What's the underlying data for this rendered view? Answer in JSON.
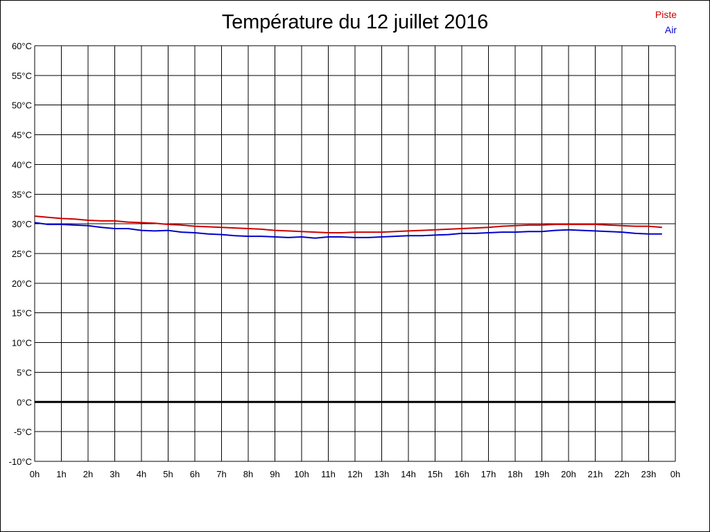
{
  "chart_data": {
    "type": "line",
    "title": "Température du 12 juillet 2016",
    "xlabel": "",
    "ylabel": "",
    "ylim": [
      -10,
      60
    ],
    "y_ticks": [
      {
        "value": 60,
        "label": "60°C"
      },
      {
        "value": 55,
        "label": "55°C"
      },
      {
        "value": 50,
        "label": "50°C"
      },
      {
        "value": 45,
        "label": "45°C"
      },
      {
        "value": 40,
        "label": "40°C"
      },
      {
        "value": 35,
        "label": "35°C"
      },
      {
        "value": 30,
        "label": "30°C"
      },
      {
        "value": 25,
        "label": "25°C"
      },
      {
        "value": 20,
        "label": "20°C"
      },
      {
        "value": 15,
        "label": "15°C"
      },
      {
        "value": 10,
        "label": "10°C"
      },
      {
        "value": 5,
        "label": "5°C"
      },
      {
        "value": 0,
        "label": "0°C"
      },
      {
        "value": -5,
        "label": "-5°C"
      },
      {
        "value": -10,
        "label": "-10°C"
      }
    ],
    "x_tick_labels": [
      "0h",
      "1h",
      "2h",
      "3h",
      "4h",
      "5h",
      "6h",
      "7h",
      "8h",
      "9h",
      "10h",
      "11h",
      "12h",
      "13h",
      "14h",
      "15h",
      "16h",
      "17h",
      "18h",
      "19h",
      "20h",
      "21h",
      "22h",
      "23h",
      "0h"
    ],
    "xlim_hours": [
      0,
      24
    ],
    "grid": true,
    "zero_line": true,
    "legend_position": "top-right",
    "series": [
      {
        "name": "Piste",
        "color": "#cc0000",
        "x": [
          0,
          0.5,
          1,
          1.5,
          2,
          2.5,
          3,
          3.5,
          4,
          4.5,
          5,
          5.5,
          6,
          6.5,
          7,
          7.5,
          8,
          8.5,
          9,
          9.5,
          10,
          10.5,
          11,
          11.5,
          12,
          12.5,
          13,
          13.5,
          14,
          14.5,
          15,
          15.5,
          16,
          16.5,
          17,
          17.5,
          18,
          18.5,
          19,
          19.5,
          20,
          20.5,
          21,
          21.5,
          22,
          22.5,
          23,
          23.5
        ],
        "values": [
          31.3,
          31.1,
          30.9,
          30.8,
          30.6,
          30.5,
          30.5,
          30.3,
          30.2,
          30.1,
          29.9,
          29.8,
          29.6,
          29.5,
          29.4,
          29.3,
          29.2,
          29.1,
          28.9,
          28.8,
          28.7,
          28.6,
          28.5,
          28.5,
          28.6,
          28.6,
          28.6,
          28.7,
          28.8,
          28.9,
          29.0,
          29.1,
          29.2,
          29.3,
          29.4,
          29.6,
          29.7,
          29.8,
          29.8,
          29.9,
          29.9,
          29.9,
          29.9,
          29.8,
          29.7,
          29.6,
          29.6,
          29.4
        ]
      },
      {
        "name": "Air",
        "color": "#0000cc",
        "x": [
          0,
          0.5,
          1,
          1.5,
          2,
          2.5,
          3,
          3.5,
          4,
          4.5,
          5,
          5.5,
          6,
          6.5,
          7,
          7.5,
          8,
          8.5,
          9,
          9.5,
          10,
          10.5,
          11,
          11.5,
          12,
          12.5,
          13,
          13.5,
          14,
          14.5,
          15,
          15.5,
          16,
          16.5,
          17,
          17.5,
          18,
          18.5,
          19,
          19.5,
          20,
          20.5,
          21,
          21.5,
          22,
          22.5,
          23,
          23.5
        ],
        "values": [
          30.2,
          29.9,
          29.9,
          29.8,
          29.7,
          29.4,
          29.2,
          29.2,
          28.9,
          28.8,
          28.9,
          28.6,
          28.5,
          28.3,
          28.2,
          28.0,
          27.9,
          27.9,
          27.8,
          27.7,
          27.8,
          27.6,
          27.8,
          27.8,
          27.7,
          27.7,
          27.8,
          27.9,
          28.0,
          28.0,
          28.1,
          28.2,
          28.4,
          28.4,
          28.5,
          28.6,
          28.6,
          28.7,
          28.7,
          28.9,
          29.0,
          28.9,
          28.8,
          28.7,
          28.6,
          28.4,
          28.3,
          28.3
        ]
      }
    ]
  }
}
